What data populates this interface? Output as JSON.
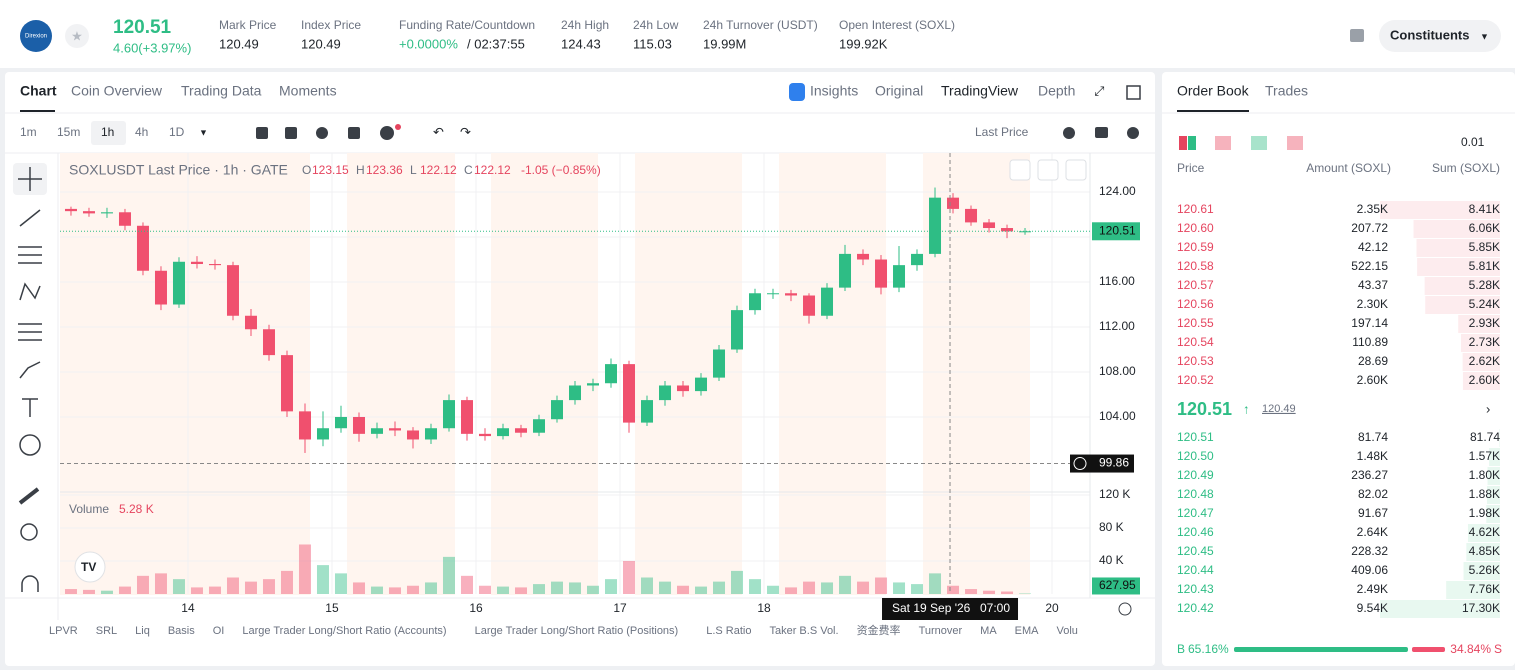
{
  "header": {
    "logo": "Direxion",
    "price": "120.51",
    "change": "4.60(+3.97%)",
    "stats": [
      {
        "label": "Mark Price",
        "value": "120.49"
      },
      {
        "label": "Index Price",
        "value": "120.49"
      },
      {
        "label": "Funding Rate/Countdown",
        "value": "+0.0000%",
        "value2": "/ 02:37:55"
      },
      {
        "label": "24h High",
        "value": "124.43"
      },
      {
        "label": "24h Low",
        "value": "115.03"
      },
      {
        "label": "24h Turnover (USDT)",
        "value": "19.99M"
      },
      {
        "label": "Open Interest (SOXL)",
        "value": "199.92K"
      }
    ],
    "constituents": "Constituents"
  },
  "tabs": [
    "Chart",
    "Coin Overview",
    "Trading Data",
    "Moments"
  ],
  "view_tabs": [
    "Insights",
    "Original",
    "TradingView",
    "Depth"
  ],
  "intervals": [
    "1m",
    "15m",
    "1h",
    "4h",
    "1D"
  ],
  "price_type": "Last Price",
  "legend": {
    "symbol": "SOXLUSDT Last Price · 1h · GATE",
    "ohlc": [
      {
        "k": "O",
        "v": "123.15"
      },
      {
        "k": "H",
        "v": "123.36"
      },
      {
        "k": "L",
        "v": "122.12"
      },
      {
        "k": "C",
        "v": "122.12"
      }
    ],
    "change": "-1.05 (−0.85%)"
  },
  "volume_legend": {
    "label": "Volume",
    "value": "5.28 K"
  },
  "chart_data": {
    "type": "candlestick",
    "x": [
      1.5,
      4.5,
      7.5,
      10.5,
      13.5,
      16.5,
      19.5,
      22.5,
      25.5,
      28.5,
      31.5,
      34.5,
      37.5,
      40.5,
      43.5,
      46.5,
      49.5,
      52.5,
      55.5,
      58.5,
      61.5,
      64.5,
      67.5,
      70.5,
      73.5,
      76.5,
      79.5,
      82.5,
      85.5,
      88.5,
      91.5,
      94.5,
      97.5,
      100.5,
      103.5,
      106.5,
      109.5,
      112.5,
      115.5,
      118.5,
      121.5,
      124.5,
      127.5,
      130.5,
      133.5,
      136.5,
      139.5,
      142.5,
      145.5,
      148.5,
      151.5,
      154.5,
      157.5,
      160.5
    ],
    "ohlc": [
      [
        122.5,
        122.7,
        121.9,
        122.3
      ],
      [
        122.3,
        122.6,
        121.8,
        122.1
      ],
      [
        122.1,
        122.6,
        121.7,
        122.2
      ],
      [
        122.2,
        122.5,
        120.6,
        121.0
      ],
      [
        121.0,
        121.3,
        116.6,
        117.0
      ],
      [
        117.0,
        117.4,
        113.5,
        114.0
      ],
      [
        114.0,
        118.2,
        113.7,
        117.8
      ],
      [
        117.8,
        118.3,
        117.2,
        117.6
      ],
      [
        117.6,
        118.0,
        117.1,
        117.5
      ],
      [
        117.5,
        117.8,
        112.6,
        113.0
      ],
      [
        113.0,
        113.6,
        111.2,
        111.8
      ],
      [
        111.8,
        112.2,
        109.0,
        109.5
      ],
      [
        109.5,
        109.9,
        104.0,
        104.5
      ],
      [
        104.5,
        105.2,
        100.8,
        102.0
      ],
      [
        102.0,
        104.5,
        101.4,
        103.0
      ],
      [
        103.0,
        105.0,
        102.6,
        104.0
      ],
      [
        104.0,
        104.4,
        101.8,
        102.5
      ],
      [
        102.5,
        103.5,
        102.1,
        103.0
      ],
      [
        103.0,
        103.6,
        102.3,
        102.8
      ],
      [
        102.8,
        103.1,
        101.2,
        102.0
      ],
      [
        102.0,
        103.4,
        101.6,
        103.0
      ],
      [
        103.0,
        106.0,
        102.7,
        105.5
      ],
      [
        105.5,
        105.8,
        101.9,
        102.5
      ],
      [
        102.5,
        103.0,
        101.9,
        102.3
      ],
      [
        102.3,
        103.4,
        102.0,
        103.0
      ],
      [
        103.0,
        103.3,
        102.2,
        102.6
      ],
      [
        102.6,
        104.2,
        102.3,
        103.8
      ],
      [
        103.8,
        105.9,
        103.5,
        105.5
      ],
      [
        105.5,
        107.2,
        105.1,
        106.8
      ],
      [
        106.8,
        107.4,
        106.3,
        107.0
      ],
      [
        107.0,
        109.2,
        106.6,
        108.7
      ],
      [
        108.7,
        109.0,
        102.6,
        103.5
      ],
      [
        103.5,
        105.9,
        103.2,
        105.5
      ],
      [
        105.5,
        107.2,
        105.0,
        106.8
      ],
      [
        106.8,
        107.2,
        105.8,
        106.3
      ],
      [
        106.3,
        107.9,
        105.9,
        107.5
      ],
      [
        107.5,
        110.4,
        107.2,
        110.0
      ],
      [
        110.0,
        113.9,
        109.7,
        113.5
      ],
      [
        113.5,
        115.4,
        113.1,
        115.0
      ],
      [
        115.0,
        115.4,
        114.5,
        115.0
      ],
      [
        115.0,
        115.3,
        114.3,
        114.8
      ],
      [
        114.8,
        115.0,
        112.3,
        113.0
      ],
      [
        113.0,
        115.9,
        112.7,
        115.5
      ],
      [
        115.5,
        119.3,
        115.2,
        118.5
      ],
      [
        118.5,
        118.9,
        117.5,
        118.0
      ],
      [
        118.0,
        118.4,
        114.9,
        115.5
      ],
      [
        115.5,
        119.2,
        115.1,
        117.5
      ],
      [
        117.5,
        118.9,
        117.0,
        118.5
      ],
      [
        118.5,
        124.4,
        118.2,
        123.5
      ],
      [
        123.5,
        123.9,
        122.1,
        122.5
      ],
      [
        122.5,
        122.8,
        121.0,
        121.3
      ],
      [
        121.3,
        121.6,
        120.4,
        120.8
      ],
      [
        120.8,
        121.1,
        119.9,
        120.5
      ],
      [
        120.5,
        120.8,
        120.2,
        120.51
      ]
    ],
    "volume": [
      6000,
      5000,
      4000,
      9000,
      22000,
      25000,
      18000,
      8000,
      9000,
      20000,
      15000,
      18000,
      28000,
      60000,
      35000,
      25000,
      14000,
      9000,
      8000,
      10000,
      14000,
      45000,
      22000,
      10000,
      9000,
      8000,
      12000,
      15000,
      14000,
      10000,
      18000,
      40000,
      20000,
      15000,
      10000,
      9000,
      15000,
      28000,
      18000,
      10000,
      8000,
      15000,
      14000,
      22000,
      15000,
      20000,
      14000,
      12000,
      25000,
      10000,
      6000,
      4000,
      3000,
      627.95
    ],
    "xlim": [
      -0.33,
      171.33
    ],
    "xticks": [
      {
        "value": 21,
        "label": "14"
      },
      {
        "value": 45,
        "label": "15"
      },
      {
        "value": 69,
        "label": "16"
      },
      {
        "value": 93,
        "label": "17"
      },
      {
        "value": 117,
        "label": "18"
      },
      {
        "value": 165,
        "label": "20"
      }
    ],
    "ylim": [
      97.33,
      127.47
    ],
    "yticks": [
      {
        "value": 124,
        "label": "124.00"
      },
      {
        "value": 120,
        "label": "120.00"
      },
      {
        "value": 116,
        "label": "116.00"
      },
      {
        "value": 112,
        "label": "112.00"
      },
      {
        "value": 108,
        "label": "108.00"
      },
      {
        "value": 104,
        "label": "104.00"
      }
    ],
    "y2lim": [
      0,
      123600
    ],
    "y2ticks": [
      {
        "value": 120000,
        "label": "120 K"
      },
      {
        "value": 80000,
        "label": "80 K"
      },
      {
        "value": 40000,
        "label": "40 K"
      }
    ],
    "up_color": "#2ebd85",
    "down_color": "#f0506e",
    "last_price": {
      "value": 120.51,
      "label": "120.51"
    },
    "crosshair": {
      "value": 99.86,
      "label": "99.86",
      "x": 148,
      "time": "Sat 19 Sep '26",
      "clock": "07:00"
    }
  },
  "order_book": {
    "tabs": [
      "Order Book",
      "Trades"
    ],
    "precision": "0.01",
    "columns": [
      "Price",
      "Amount (SOXL)",
      "Sum (SOXL)"
    ],
    "asks": {
      "prices": [
        "120.61",
        "120.60",
        "120.59",
        "120.58",
        "120.57",
        "120.56",
        "120.55",
        "120.54",
        "120.53",
        "120.52"
      ],
      "amounts": [
        "2.35K",
        "207.72",
        "42.12",
        "522.15",
        "43.37",
        "2.30K",
        "197.14",
        "110.89",
        "28.69",
        "2.60K"
      ],
      "sums": [
        8410,
        6060,
        5850,
        5810,
        5280,
        5240,
        2930,
        2730,
        2620,
        2600
      ],
      "sum_labels": [
        "8.41K",
        "6.06K",
        "5.85K",
        "5.81K",
        "5.28K",
        "5.24K",
        "2.93K",
        "2.73K",
        "2.62K",
        "2.60K"
      ]
    },
    "mid": {
      "price": "120.51",
      "mark": "120.49"
    },
    "bids": {
      "prices": [
        "120.51",
        "120.50",
        "120.49",
        "120.48",
        "120.47",
        "120.46",
        "120.45",
        "120.44",
        "120.43",
        "120.42"
      ],
      "amounts": [
        "81.74",
        "1.48K",
        "236.27",
        "82.02",
        "91.67",
        "2.64K",
        "228.32",
        "409.06",
        "2.49K",
        "9.54K"
      ],
      "sums": [
        81.74,
        1570,
        1800,
        1880,
        1980,
        4620,
        4850,
        5260,
        7760,
        17300
      ],
      "sum_labels": [
        "81.74",
        "1.57K",
        "1.80K",
        "1.88K",
        "1.98K",
        "4.62K",
        "4.85K",
        "5.26K",
        "7.76K",
        "17.30K"
      ]
    },
    "ratio": {
      "buy_letter": "B",
      "buy": 65.16,
      "buy_label": "65.16%",
      "sell": 34.84,
      "sell_label": "34.84%",
      "sell_letter": "S"
    }
  },
  "indicators": [
    "LPVR",
    "SRL",
    "Liq",
    "Basis",
    "OI",
    "Large Trader Long/Short Ratio (Accounts)",
    "Large Trader Long/Short Ratio (Positions)",
    "L.S Ratio",
    "Taker B.S Vol.",
    "资金费率",
    "Turnover",
    "MA",
    "EMA",
    "Volu"
  ]
}
